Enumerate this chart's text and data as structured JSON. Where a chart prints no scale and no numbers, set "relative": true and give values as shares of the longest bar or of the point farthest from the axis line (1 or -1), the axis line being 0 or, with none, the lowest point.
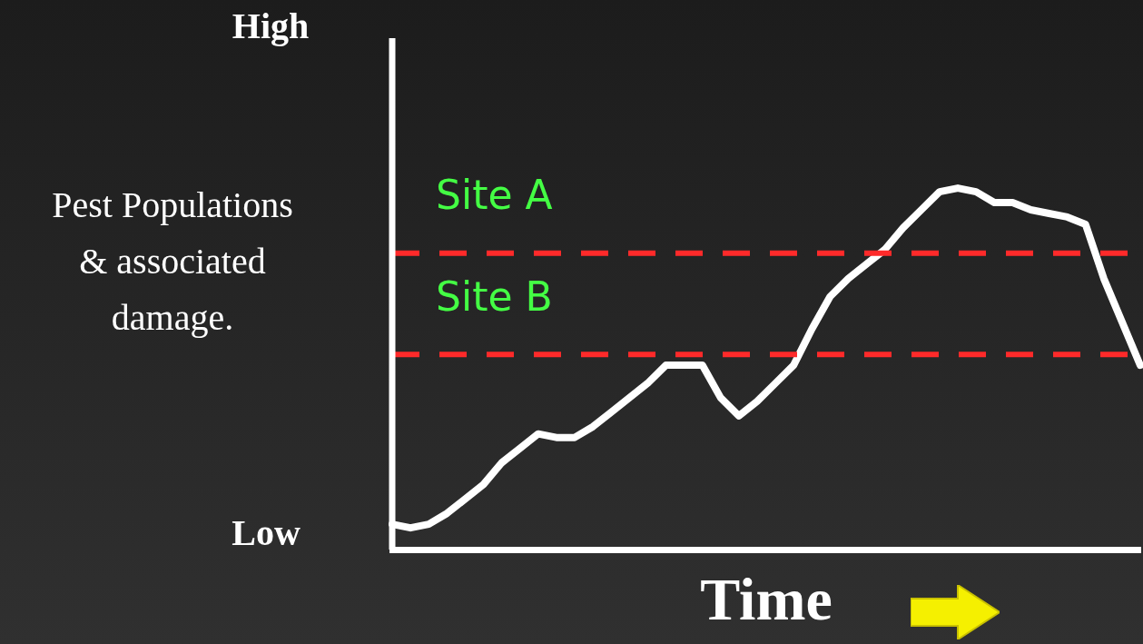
{
  "chart_data": {
    "type": "line",
    "xlabel": "Time",
    "categories": [
      null,
      null,
      null,
      null,
      null,
      null,
      null,
      null,
      null,
      null,
      null,
      null,
      null,
      null,
      null,
      null,
      null,
      null,
      null,
      null,
      null,
      null,
      null,
      null,
      null,
      null,
      null,
      null,
      null,
      null,
      null,
      null,
      null,
      null,
      null,
      null,
      null,
      null,
      null,
      null,
      null,
      null
    ],
    "series": [
      {
        "color": "#ffffff",
        "values": [
          0.07,
          0.06,
          0.07,
          0.1,
          0.14,
          0.18,
          0.24,
          0.28,
          0.32,
          0.31,
          0.31,
          0.34,
          0.38,
          0.42,
          0.46,
          0.51,
          0.51,
          0.51,
          0.42,
          0.37,
          0.41,
          0.46,
          0.51,
          0.61,
          0.7,
          0.75,
          0.79,
          0.83,
          0.89,
          0.94,
          0.99,
          1,
          0.99,
          0.96,
          0.96,
          0.94,
          0.93,
          0.92,
          0.9,
          0.75,
          0.63,
          0.51
        ]
      }
    ],
    "relative": true,
    "annotations": [
      "High",
      "Low",
      "Pest Populations\n& associated\ndamage."
    ],
    "grid": false,
    "legend": false,
    "ref_lines": [
      {
        "axis": "y",
        "value": 0.82,
        "label": "Site A",
        "color": "#ff2a2a",
        "line_style": "dashed"
      },
      {
        "axis": "y",
        "value": 0.54,
        "label": "Site B",
        "color": "#ff2a2a",
        "line_style": "dashed"
      }
    ]
  }
}
